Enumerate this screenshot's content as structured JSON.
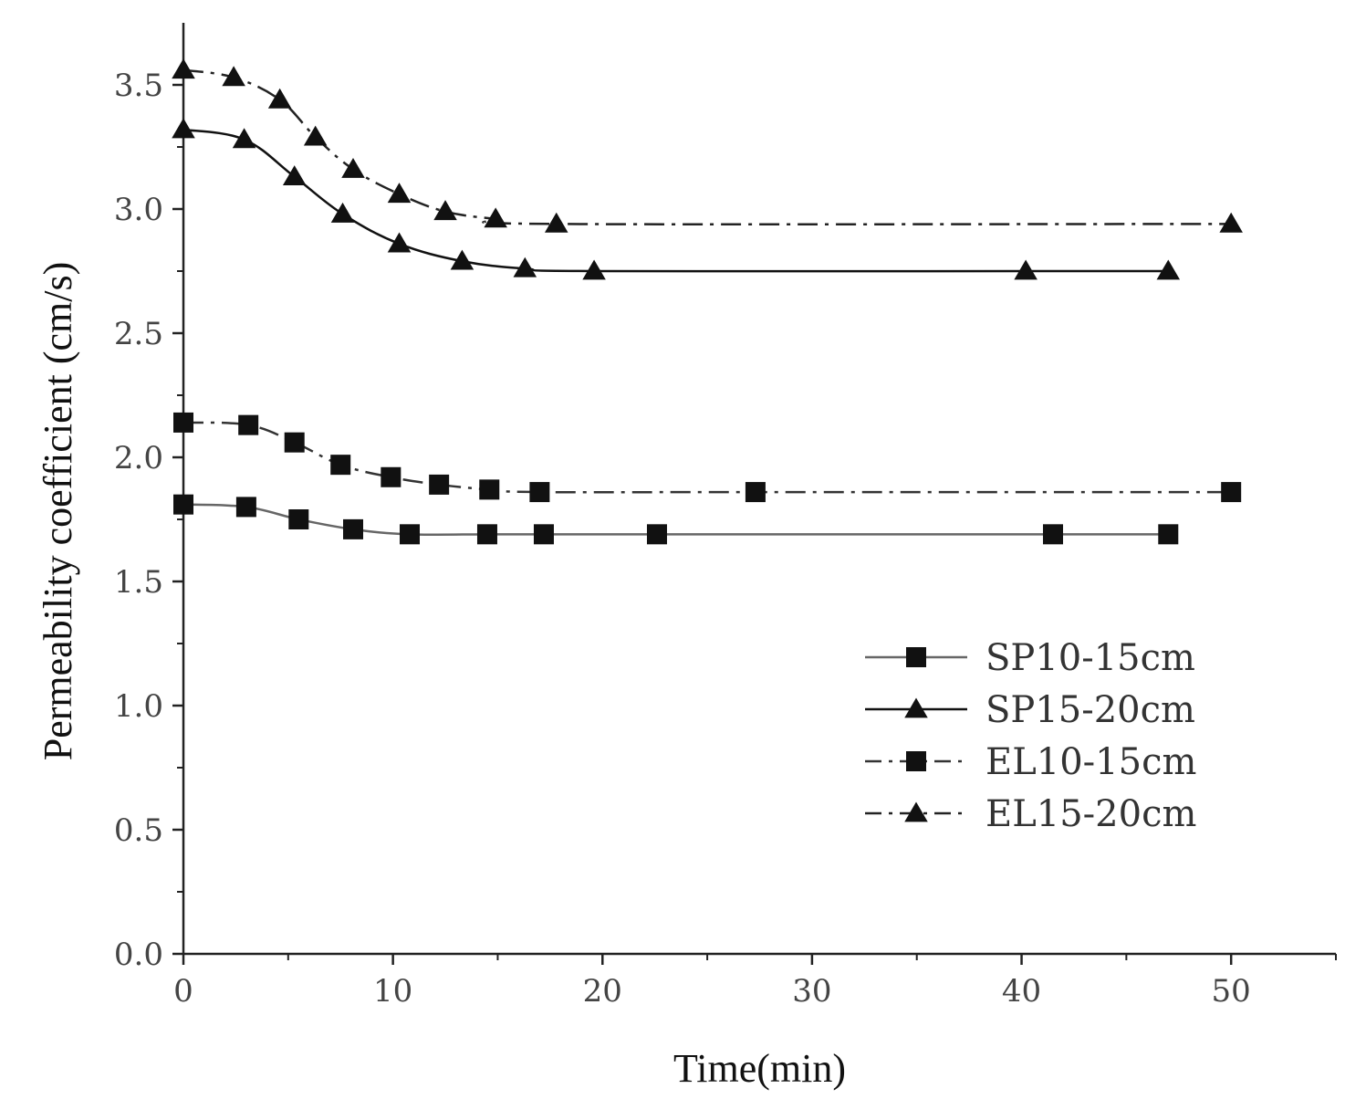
{
  "chart_data": {
    "type": "line",
    "xlabel": "Time(min)",
    "ylabel": "Permeability coefficient (cm/s)",
    "xlim": [
      0,
      55
    ],
    "ylim": [
      0,
      3.75
    ],
    "xticks": [
      0,
      10,
      20,
      30,
      40,
      50
    ],
    "xtick_labels": [
      "0",
      "10",
      "20",
      "30",
      "40",
      "50"
    ],
    "yticks": [
      0,
      0.5,
      1.0,
      1.5,
      2.0,
      2.5,
      3.0,
      3.5
    ],
    "ytick_labels": [
      "0.0",
      "0.5",
      "1.0",
      "1.5",
      "2.0",
      "2.5",
      "3.0",
      "3.5"
    ],
    "legend_position": "bottom-right",
    "series": [
      {
        "name": "SP10-15cm",
        "marker": "square",
        "line": "solid",
        "color": "#666666",
        "x": [
          0,
          3.0,
          5.5,
          8.1,
          10.8,
          14.5,
          17.2,
          22.6,
          41.5,
          47.0
        ],
        "y": [
          1.81,
          1.8,
          1.75,
          1.71,
          1.69,
          1.69,
          1.69,
          1.69,
          1.69,
          1.69
        ]
      },
      {
        "name": "SP15-20cm",
        "marker": "triangle",
        "line": "solid",
        "color": "#111111",
        "x": [
          0,
          2.9,
          5.3,
          7.6,
          10.3,
          13.3,
          16.3,
          19.6,
          40.2,
          47.0
        ],
        "y": [
          3.32,
          3.28,
          3.13,
          2.98,
          2.86,
          2.79,
          2.76,
          2.75,
          2.75,
          2.75
        ]
      },
      {
        "name": "EL10-15cm",
        "marker": "square",
        "line": "dashdot",
        "color": "#333333",
        "x": [
          0,
          3.1,
          5.3,
          7.5,
          9.9,
          12.2,
          14.6,
          17.0,
          27.3,
          50.0
        ],
        "y": [
          2.14,
          2.13,
          2.06,
          1.97,
          1.92,
          1.89,
          1.87,
          1.86,
          1.86,
          1.86
        ]
      },
      {
        "name": "EL15-20cm",
        "marker": "triangle",
        "line": "dashdot",
        "color": "#222222",
        "x": [
          0,
          2.4,
          4.6,
          6.3,
          8.1,
          10.3,
          12.5,
          14.9,
          17.8,
          50.0
        ],
        "y": [
          3.56,
          3.53,
          3.44,
          3.29,
          3.16,
          3.06,
          2.99,
          2.96,
          2.94,
          2.94
        ]
      }
    ]
  }
}
